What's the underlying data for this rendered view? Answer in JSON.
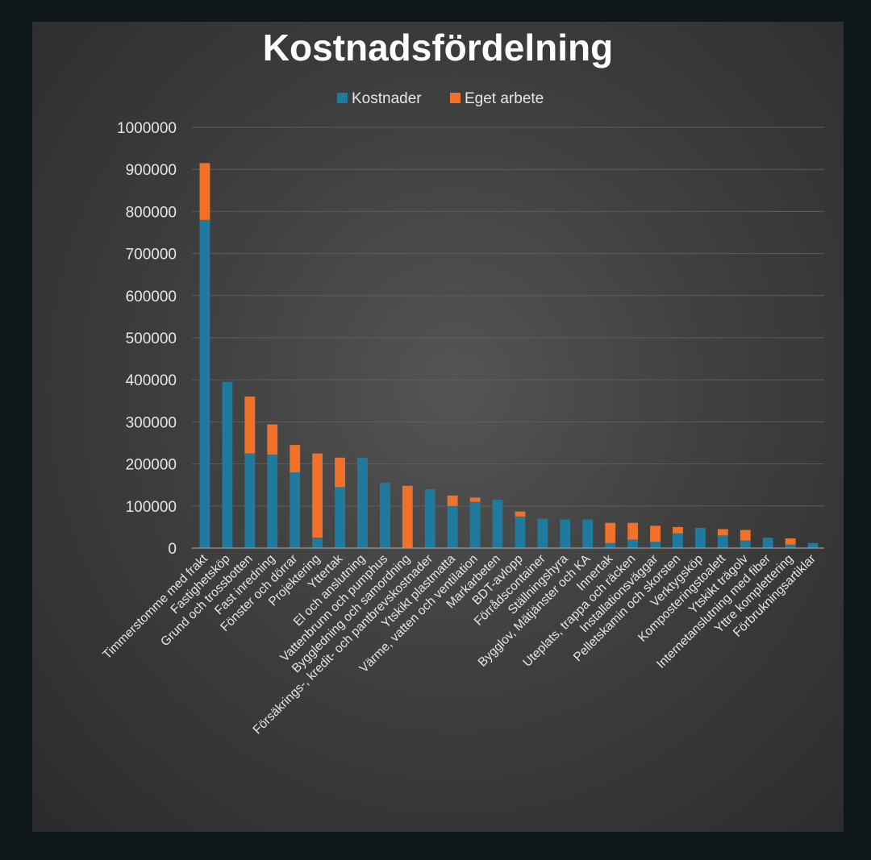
{
  "chart_data": {
    "type": "bar",
    "stacked": true,
    "title": "Kostnadsfördelning",
    "xlabel": "",
    "ylabel": "",
    "ylim": [
      0,
      1000000
    ],
    "yticks": [
      0,
      100000,
      200000,
      300000,
      400000,
      500000,
      600000,
      700000,
      800000,
      900000,
      1000000
    ],
    "grid": true,
    "legend_position": "top",
    "colors": {
      "Kostnader": "#1f7a9e",
      "Eget arbete": "#f0712a"
    },
    "categories": [
      "Timmerstomme med frakt",
      "Fastighetsköp",
      "Grund och trossbotten",
      "Fast inredning",
      "Fönster och dörrar",
      "Projektering",
      "Yttertak",
      "El och anslutning",
      "Vattenbrunn och pumphus",
      "Byggledning och samordning",
      "Försäkrings-, kredit- och pantbrevskostnader",
      "Ytskikt plastmatta",
      "Värme, vatten och ventilation",
      "Markarbeten",
      "BDT-avlopp",
      "Förrådscontainer",
      "Ställningshyra",
      "Bygglov, Mätjänster och KA",
      "Innertak",
      "Uteplats, trappa och räcken",
      "Installationsväggar",
      "Pelletskamin och skorsten",
      "Verktygsköp",
      "Komposteringstoalett",
      "Ytskikt trägolv",
      "Internetanslutning med fiber",
      "Yttre komplettering",
      "Förbrukningsartiklar"
    ],
    "series": [
      {
        "name": "Kostnader",
        "values": [
          780000,
          395000,
          225000,
          222000,
          180000,
          25000,
          145000,
          215000,
          155000,
          0,
          140000,
          100000,
          110000,
          115000,
          75000,
          70000,
          68000,
          68000,
          12000,
          20000,
          15000,
          35000,
          48000,
          30000,
          18000,
          25000,
          8000,
          12000
        ]
      },
      {
        "name": "Eget arbete",
        "values": [
          135000,
          0,
          135000,
          72000,
          65000,
          200000,
          70000,
          0,
          0,
          148000,
          0,
          25000,
          10000,
          0,
          12000,
          0,
          0,
          0,
          48000,
          40000,
          38000,
          15000,
          0,
          15000,
          25000,
          0,
          15000,
          0
        ]
      }
    ]
  }
}
